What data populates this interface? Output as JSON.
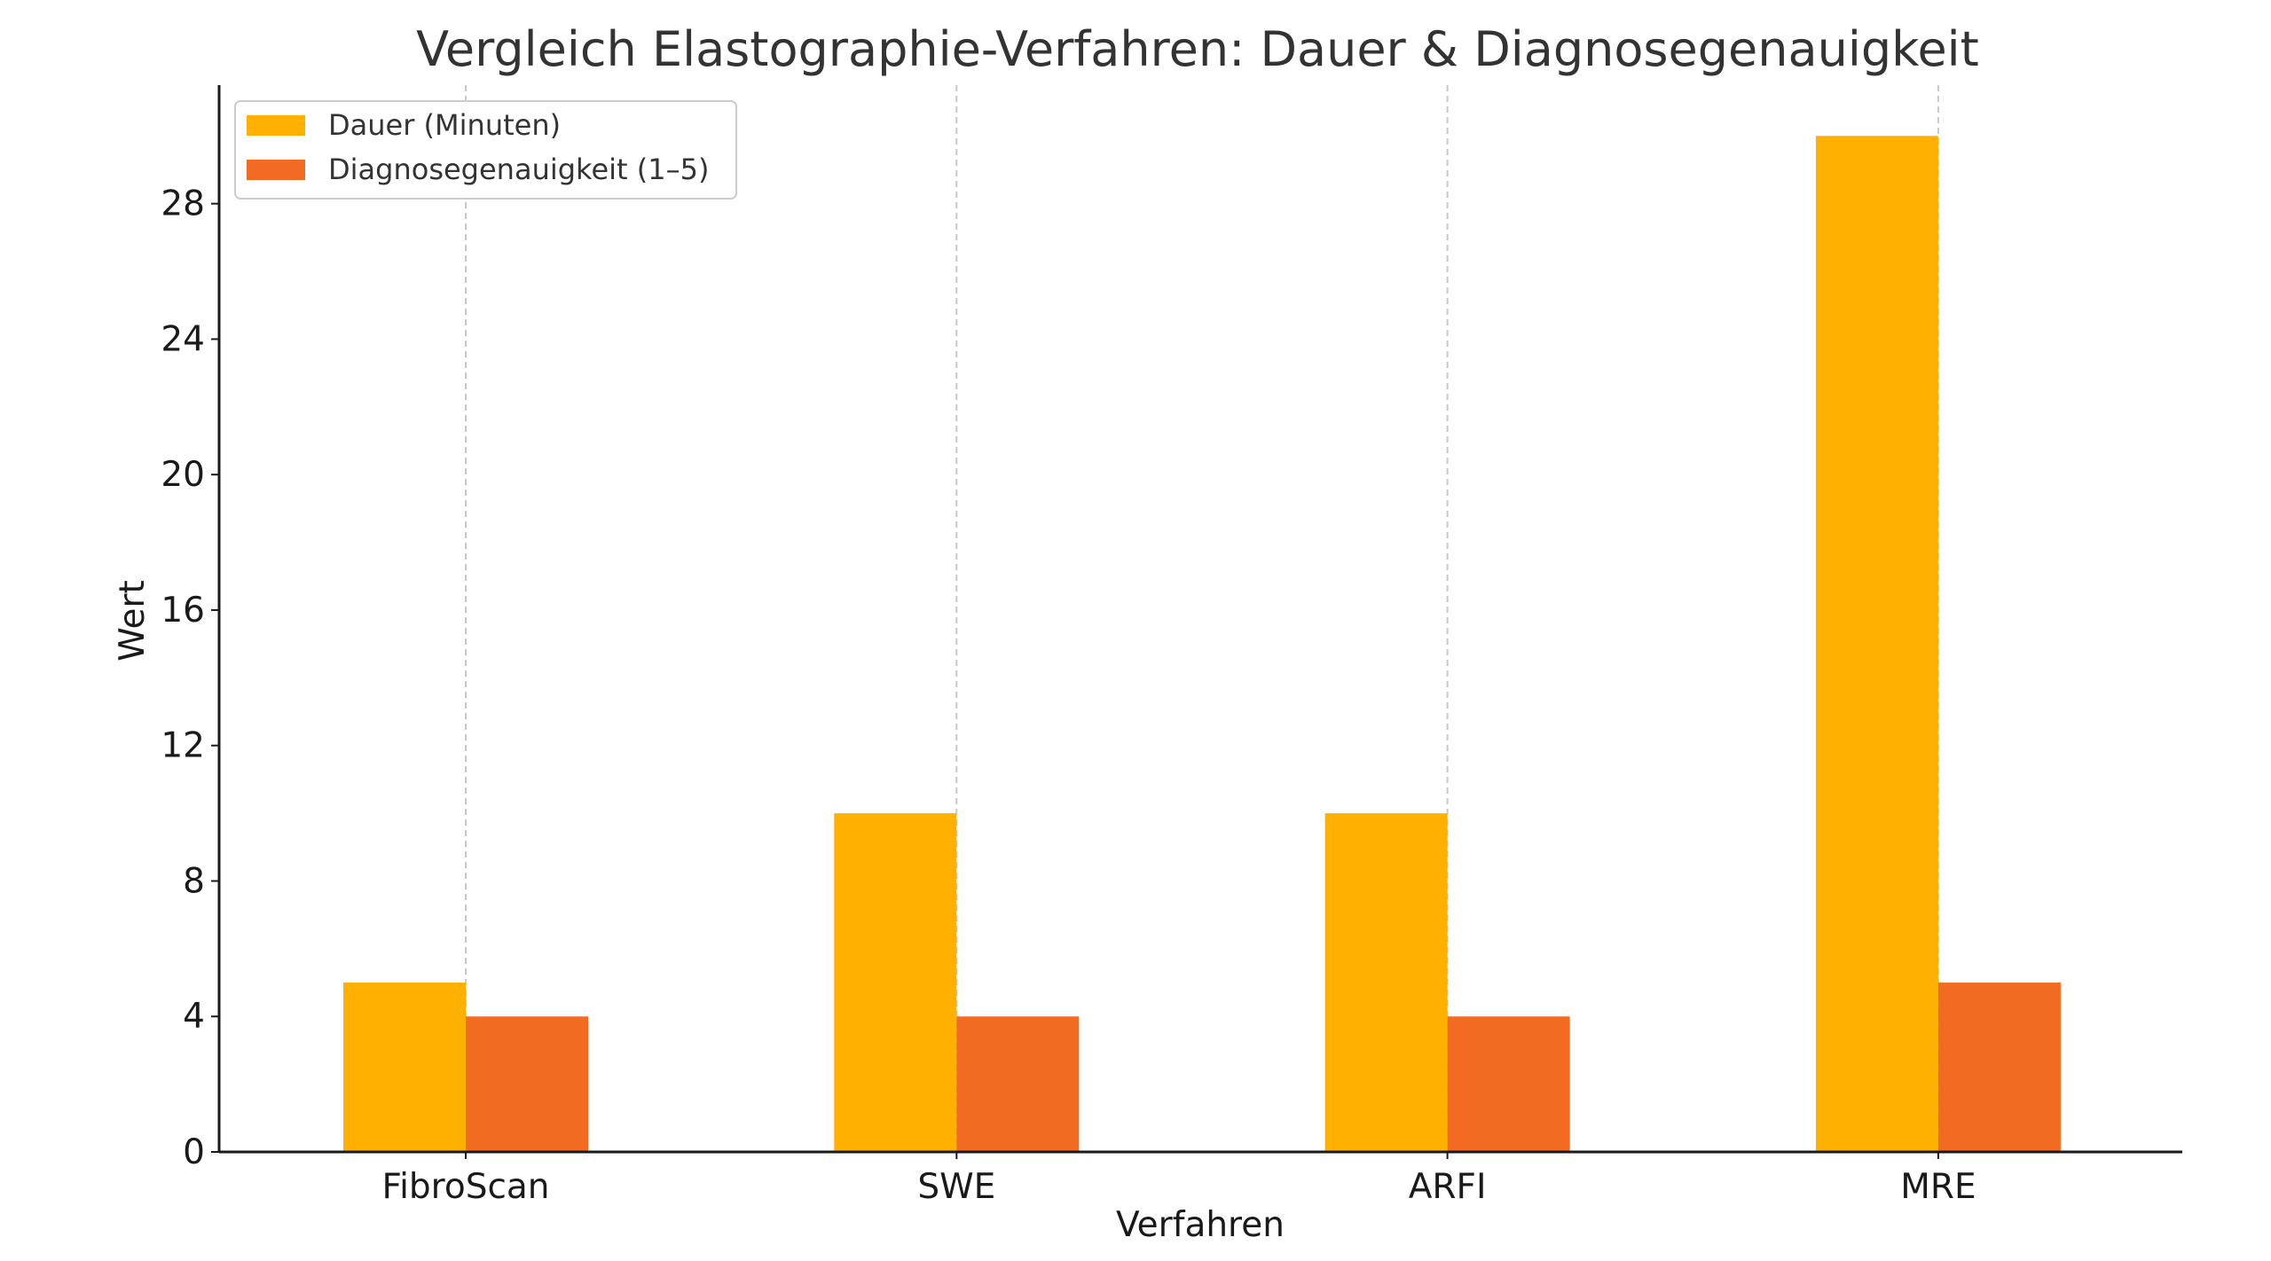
{
  "chart_data": {
    "type": "bar",
    "title": "Vergleich Elastographie-Verfahren: Dauer & Diagnosegenauigkeit",
    "xlabel": "Verfahren",
    "ylabel": "Wert",
    "categories": [
      "FibroScan",
      "SWE",
      "ARFI",
      "MRE"
    ],
    "series": [
      {
        "name": "Dauer (Minuten)",
        "values": [
          5,
          10,
          10,
          30
        ],
        "color": "#FFB000"
      },
      {
        "name": "Diagnosegenauigkeit (1–5)",
        "values": [
          4,
          4,
          4,
          5
        ],
        "color": "#F26B22"
      }
    ],
    "ylim": [
      0,
      31.5
    ],
    "yticks": [
      0,
      4,
      8,
      12,
      16,
      20,
      24,
      28
    ],
    "grid": "vertical dashed at category centers",
    "legend": "top-left"
  }
}
